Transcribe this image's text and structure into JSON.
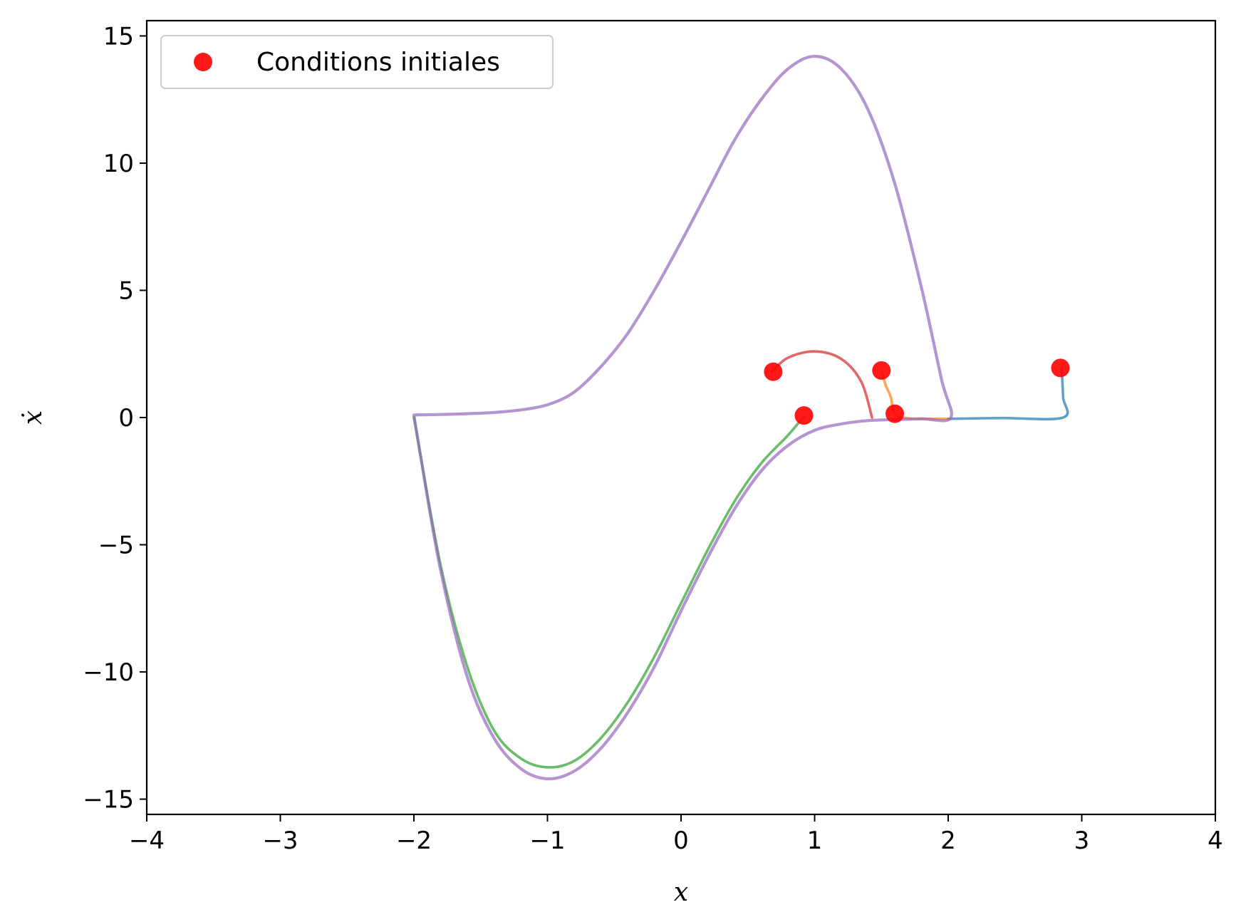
{
  "chart_data": {
    "type": "line",
    "title": "",
    "xlabel": "x",
    "ylabel": "ẋ",
    "xlim": [
      -4,
      4
    ],
    "ylim": [
      -15.6,
      15.6
    ],
    "xticks": [
      -4,
      -3,
      -2,
      -1,
      0,
      1,
      2,
      3,
      4
    ],
    "xtick_labels": [
      "−4",
      "−3",
      "−2",
      "−1",
      "0",
      "1",
      "2",
      "3",
      "4"
    ],
    "yticks": [
      -15,
      -10,
      -5,
      0,
      5,
      10,
      15
    ],
    "ytick_labels": [
      "−15",
      "−10",
      "−5",
      "0",
      "5",
      "10",
      "15"
    ],
    "grid": false,
    "legend": {
      "placement": "top-left",
      "entries": [
        "Conditions initiales"
      ]
    },
    "series": [
      {
        "color": "#1f77b4",
        "points": [
          [
            2.85,
            1.9
          ],
          [
            2.86,
            0.8
          ],
          [
            2.86,
            0.0
          ],
          [
            2.4,
            -0.02
          ],
          [
            2.0,
            -0.05
          ]
        ]
      },
      {
        "color": "#ff7f0e",
        "points": [
          [
            1.5,
            1.85
          ],
          [
            1.53,
            1.3
          ],
          [
            1.57,
            0.8
          ],
          [
            1.6,
            0.15
          ],
          [
            1.7,
            -0.03
          ],
          [
            2.0,
            -0.05
          ]
        ]
      },
      {
        "color": "#2ca02c",
        "points": [
          [
            0.92,
            0.05
          ],
          [
            0.8,
            -0.7
          ],
          [
            0.6,
            -1.8
          ],
          [
            0.4,
            -3.3
          ],
          [
            0.2,
            -5.2
          ],
          [
            0.0,
            -7.3
          ],
          [
            -0.2,
            -9.4
          ],
          [
            -0.4,
            -11.2
          ],
          [
            -0.6,
            -12.6
          ],
          [
            -0.8,
            -13.5
          ],
          [
            -1.0,
            -13.75
          ],
          [
            -1.2,
            -13.4
          ],
          [
            -1.4,
            -12.3
          ],
          [
            -1.6,
            -9.8
          ],
          [
            -1.8,
            -5.8
          ],
          [
            -2.0,
            0.0
          ]
        ]
      },
      {
        "color": "#d62728",
        "points": [
          [
            0.68,
            1.8
          ],
          [
            0.8,
            2.35
          ],
          [
            1.0,
            2.6
          ],
          [
            1.2,
            2.3
          ],
          [
            1.35,
            1.4
          ],
          [
            1.43,
            0.0
          ]
        ]
      },
      {
        "color": "#9467bd",
        "points": [
          [
            -2.0,
            0.1
          ],
          [
            -1.8,
            0.12
          ],
          [
            -1.6,
            0.15
          ],
          [
            -1.4,
            0.2
          ],
          [
            -1.2,
            0.3
          ],
          [
            -1.0,
            0.5
          ],
          [
            -0.8,
            1.0
          ],
          [
            -0.6,
            2.0
          ],
          [
            -0.4,
            3.3
          ],
          [
            -0.2,
            5.0
          ],
          [
            0.0,
            6.9
          ],
          [
            0.2,
            8.9
          ],
          [
            0.4,
            10.9
          ],
          [
            0.6,
            12.5
          ],
          [
            0.8,
            13.7
          ],
          [
            1.0,
            14.2
          ],
          [
            1.2,
            13.7
          ],
          [
            1.4,
            12.1
          ],
          [
            1.6,
            9.2
          ],
          [
            1.8,
            5.1
          ],
          [
            1.95,
            1.5
          ],
          [
            2.02,
            0.0
          ],
          [
            1.8,
            -0.05
          ],
          [
            1.6,
            -0.08
          ],
          [
            1.4,
            -0.12
          ],
          [
            1.2,
            -0.25
          ],
          [
            1.0,
            -0.5
          ],
          [
            0.8,
            -1.1
          ],
          [
            0.6,
            -2.1
          ],
          [
            0.4,
            -3.6
          ],
          [
            0.2,
            -5.5
          ],
          [
            0.0,
            -7.6
          ],
          [
            -0.2,
            -9.8
          ],
          [
            -0.4,
            -11.6
          ],
          [
            -0.6,
            -13.0
          ],
          [
            -0.8,
            -13.9
          ],
          [
            -1.0,
            -14.2
          ],
          [
            -1.2,
            -13.8
          ],
          [
            -1.4,
            -12.6
          ],
          [
            -1.6,
            -10.2
          ],
          [
            -1.8,
            -6.0
          ],
          [
            -1.95,
            -1.5
          ],
          [
            -2.0,
            0.1
          ]
        ]
      }
    ],
    "initial_conditions": {
      "name": "Conditions initiales",
      "color": "#ff0000",
      "points": [
        [
          2.84,
          1.95
        ],
        [
          1.5,
          1.85
        ],
        [
          0.92,
          0.08
        ],
        [
          0.69,
          1.8
        ],
        [
          1.6,
          0.15
        ]
      ]
    }
  }
}
